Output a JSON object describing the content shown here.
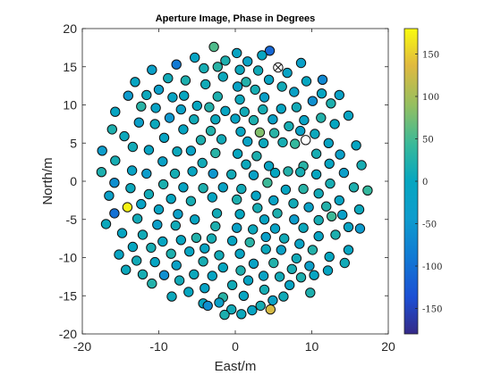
{
  "chart_data": {
    "type": "scatter",
    "title": "Aperture Image, Phase in Degrees",
    "xlabel": "East/m",
    "ylabel": "North/m",
    "xlim": [
      -20,
      20
    ],
    "ylim": [
      -20,
      20
    ],
    "xticks": [
      "-20",
      "-10",
      "0",
      "10",
      "20"
    ],
    "yticks": [
      "20",
      "15",
      "10",
      "5",
      "0",
      "-5",
      "-10",
      "-15",
      "-20"
    ],
    "grid": false,
    "colorbar": {
      "colormap": "parula",
      "range": [
        -180,
        180
      ],
      "ticks": [
        "150",
        "100",
        "50",
        "0",
        "-50",
        "-100",
        "-150"
      ]
    },
    "special_markers": [
      {
        "x": 5.6,
        "y": 14.9,
        "kind": "crossed-circle"
      },
      {
        "x": 9.2,
        "y": 5.4,
        "kind": "empty-circle"
      }
    ],
    "points": [
      {
        "x": 4.5,
        "y": 17.1,
        "phase": -110
      },
      {
        "x": -2.8,
        "y": 17.6,
        "phase": 55
      },
      {
        "x": 0.2,
        "y": 16.8,
        "phase": -10
      },
      {
        "x": 3.5,
        "y": 16.5,
        "phase": -5
      },
      {
        "x": -5.3,
        "y": 16.2,
        "phase": -10
      },
      {
        "x": 8.6,
        "y": 15.5,
        "phase": -25
      },
      {
        "x": -1.3,
        "y": 15.8,
        "phase": 20
      },
      {
        "x": 1.6,
        "y": 15.7,
        "phase": -15
      },
      {
        "x": -7.7,
        "y": 15.3,
        "phase": -90
      },
      {
        "x": -10.9,
        "y": 14.6,
        "phase": -25
      },
      {
        "x": -4.1,
        "y": 14.8,
        "phase": 15
      },
      {
        "x": -2.3,
        "y": 15.0,
        "phase": 30
      },
      {
        "x": 0.6,
        "y": 14.6,
        "phase": 5
      },
      {
        "x": 3.0,
        "y": 14.5,
        "phase": 10
      },
      {
        "x": 6.8,
        "y": 14.2,
        "phase": -15
      },
      {
        "x": 11.4,
        "y": 13.3,
        "phase": -70
      },
      {
        "x": -8.8,
        "y": 13.5,
        "phase": 10
      },
      {
        "x": -6.5,
        "y": 13.2,
        "phase": 20
      },
      {
        "x": -1.6,
        "y": 13.7,
        "phase": 5
      },
      {
        "x": 1.4,
        "y": 13.0,
        "phase": 25
      },
      {
        "x": 4.4,
        "y": 13.3,
        "phase": -10
      },
      {
        "x": 9.3,
        "y": 13.1,
        "phase": 0
      },
      {
        "x": -13.1,
        "y": 13.0,
        "phase": -5
      },
      {
        "x": -3.9,
        "y": 12.7,
        "phase": 10
      },
      {
        "x": 0.3,
        "y": 12.4,
        "phase": -15
      },
      {
        "x": 2.6,
        "y": 12.0,
        "phase": 15
      },
      {
        "x": 6.1,
        "y": 12.4,
        "phase": 10
      },
      {
        "x": -10.0,
        "y": 12.0,
        "phase": -30
      },
      {
        "x": 7.7,
        "y": 11.7,
        "phase": -20
      },
      {
        "x": -11.6,
        "y": 11.3,
        "phase": 5
      },
      {
        "x": 11.3,
        "y": 11.5,
        "phase": -5
      },
      {
        "x": -8.2,
        "y": 11.0,
        "phase": -10
      },
      {
        "x": -6.7,
        "y": 11.2,
        "phase": 0
      },
      {
        "x": -2.3,
        "y": 11.1,
        "phase": 20
      },
      {
        "x": 0.6,
        "y": 10.7,
        "phase": 5
      },
      {
        "x": 3.8,
        "y": 11.0,
        "phase": -25
      },
      {
        "x": 13.6,
        "y": 11.3,
        "phase": -20
      },
      {
        "x": -14.0,
        "y": 11.2,
        "phase": -45
      },
      {
        "x": 10.1,
        "y": 10.5,
        "phase": -60
      },
      {
        "x": 12.5,
        "y": 10.2,
        "phase": 20
      },
      {
        "x": -12.3,
        "y": 9.8,
        "phase": 30
      },
      {
        "x": -10.4,
        "y": 9.6,
        "phase": -15
      },
      {
        "x": -7.1,
        "y": 9.4,
        "phase": -20
      },
      {
        "x": -5.0,
        "y": 9.9,
        "phase": 0
      },
      {
        "x": -3.4,
        "y": 9.7,
        "phase": 25
      },
      {
        "x": -1.3,
        "y": 9.2,
        "phase": -5
      },
      {
        "x": 1.2,
        "y": 9.1,
        "phase": 10
      },
      {
        "x": 3.6,
        "y": 9.4,
        "phase": 15
      },
      {
        "x": 6.0,
        "y": 9.5,
        "phase": -5
      },
      {
        "x": 8.0,
        "y": 9.7,
        "phase": 10
      },
      {
        "x": -15.7,
        "y": 9.1,
        "phase": -5
      },
      {
        "x": 14.8,
        "y": 8.6,
        "phase": -10
      },
      {
        "x": -8.6,
        "y": 8.3,
        "phase": -50
      },
      {
        "x": -5.4,
        "y": 8.1,
        "phase": 10
      },
      {
        "x": -2.6,
        "y": 8.1,
        "phase": 5
      },
      {
        "x": 0.0,
        "y": 8.2,
        "phase": -10
      },
      {
        "x": 2.4,
        "y": 8.0,
        "phase": 20
      },
      {
        "x": 4.9,
        "y": 8.1,
        "phase": -20
      },
      {
        "x": 9.0,
        "y": 8.0,
        "phase": -15
      },
      {
        "x": 11.2,
        "y": 8.3,
        "phase": 25
      },
      {
        "x": -12.6,
        "y": 7.7,
        "phase": -30
      },
      {
        "x": -10.5,
        "y": 7.5,
        "phase": 5
      },
      {
        "x": 7.0,
        "y": 7.2,
        "phase": 15
      },
      {
        "x": 13.0,
        "y": 7.5,
        "phase": 0
      },
      {
        "x": -16.1,
        "y": 6.8,
        "phase": 20
      },
      {
        "x": -6.8,
        "y": 6.8,
        "phase": -5
      },
      {
        "x": -3.2,
        "y": 6.6,
        "phase": 25
      },
      {
        "x": 0.7,
        "y": 6.5,
        "phase": -5
      },
      {
        "x": 3.2,
        "y": 6.4,
        "phase": 80
      },
      {
        "x": 5.1,
        "y": 6.3,
        "phase": 30
      },
      {
        "x": 8.5,
        "y": 6.6,
        "phase": -20
      },
      {
        "x": 10.4,
        "y": 6.2,
        "phase": 5
      },
      {
        "x": -14.5,
        "y": 5.9,
        "phase": 5
      },
      {
        "x": -9.3,
        "y": 5.7,
        "phase": -10
      },
      {
        "x": -4.5,
        "y": 5.4,
        "phase": 20
      },
      {
        "x": -1.8,
        "y": 5.5,
        "phase": 10
      },
      {
        "x": 1.6,
        "y": 5.2,
        "phase": -15
      },
      {
        "x": 3.7,
        "y": 5.0,
        "phase": 5
      },
      {
        "x": 6.2,
        "y": 5.1,
        "phase": 15
      },
      {
        "x": 7.8,
        "y": 4.9,
        "phase": 40
      },
      {
        "x": 12.2,
        "y": 5.0,
        "phase": -10
      },
      {
        "x": 15.8,
        "y": 4.7,
        "phase": -5
      },
      {
        "x": -17.4,
        "y": 4.0,
        "phase": -40
      },
      {
        "x": -13.4,
        "y": 4.5,
        "phase": 10
      },
      {
        "x": -11.3,
        "y": 4.1,
        "phase": -10
      },
      {
        "x": -7.6,
        "y": 3.9,
        "phase": 5
      },
      {
        "x": -5.8,
        "y": 4.0,
        "phase": -15
      },
      {
        "x": -2.6,
        "y": 3.7,
        "phase": 30
      },
      {
        "x": 0.3,
        "y": 3.6,
        "phase": 0
      },
      {
        "x": 2.8,
        "y": 3.3,
        "phase": 20
      },
      {
        "x": 10.6,
        "y": 3.6,
        "phase": 15
      },
      {
        "x": 13.7,
        "y": 3.5,
        "phase": -25
      },
      {
        "x": -15.7,
        "y": 2.7,
        "phase": 15
      },
      {
        "x": -9.5,
        "y": 2.6,
        "phase": -20
      },
      {
        "x": -4.3,
        "y": 2.4,
        "phase": 10
      },
      {
        "x": 1.4,
        "y": 2.2,
        "phase": 5
      },
      {
        "x": 4.4,
        "y": 2.0,
        "phase": -10
      },
      {
        "x": 8.9,
        "y": 2.0,
        "phase": 30
      },
      {
        "x": 12.3,
        "y": 2.3,
        "phase": -5
      },
      {
        "x": 16.5,
        "y": 2.1,
        "phase": 15
      },
      {
        "x": -17.5,
        "y": 1.2,
        "phase": 20
      },
      {
        "x": -13.5,
        "y": 1.4,
        "phase": -15
      },
      {
        "x": -11.6,
        "y": 1.0,
        "phase": -40
      },
      {
        "x": -7.9,
        "y": 1.0,
        "phase": 15
      },
      {
        "x": -5.6,
        "y": 1.3,
        "phase": -5
      },
      {
        "x": -2.9,
        "y": 1.0,
        "phase": -50
      },
      {
        "x": -0.5,
        "y": 0.9,
        "phase": 10
      },
      {
        "x": 2.4,
        "y": 0.8,
        "phase": -20
      },
      {
        "x": 5.2,
        "y": 1.1,
        "phase": 0
      },
      {
        "x": 6.9,
        "y": 1.3,
        "phase": 25
      },
      {
        "x": 8.5,
        "y": 1.2,
        "phase": 15
      },
      {
        "x": 10.6,
        "y": 0.9,
        "phase": 0
      },
      {
        "x": 14.2,
        "y": 1.1,
        "phase": -30
      },
      {
        "x": -15.8,
        "y": -0.2,
        "phase": -60
      },
      {
        "x": -9.4,
        "y": -0.4,
        "phase": 20
      },
      {
        "x": 4.2,
        "y": -0.2,
        "phase": 45
      },
      {
        "x": 12.4,
        "y": -0.3,
        "phase": 15
      },
      {
        "x": -13.7,
        "y": -0.9,
        "phase": 5
      },
      {
        "x": -6.8,
        "y": -0.8,
        "phase": -10
      },
      {
        "x": -4.2,
        "y": -0.9,
        "phase": 20
      },
      {
        "x": -1.6,
        "y": -0.8,
        "phase": -15
      },
      {
        "x": 0.8,
        "y": -1.0,
        "phase": 10
      },
      {
        "x": 6.6,
        "y": -1.1,
        "phase": -5
      },
      {
        "x": 8.9,
        "y": -1.0,
        "phase": 30
      },
      {
        "x": 15.5,
        "y": -0.8,
        "phase": 20
      },
      {
        "x": -16.5,
        "y": -1.9,
        "phase": -25
      },
      {
        "x": -11.3,
        "y": -1.7,
        "phase": 10
      },
      {
        "x": 2.7,
        "y": -1.9,
        "phase": -10
      },
      {
        "x": 10.9,
        "y": -1.6,
        "phase": 10
      },
      {
        "x": -8.4,
        "y": -2.3,
        "phase": 0
      },
      {
        "x": -5.8,
        "y": -2.6,
        "phase": 15
      },
      {
        "x": -3.0,
        "y": -2.1,
        "phase": -5
      },
      {
        "x": 0.2,
        "y": -2.4,
        "phase": 20
      },
      {
        "x": 5.0,
        "y": -2.5,
        "phase": -15
      },
      {
        "x": 7.6,
        "y": -2.9,
        "phase": 10
      },
      {
        "x": 13.6,
        "y": -2.5,
        "phase": -10
      },
      {
        "x": 17.3,
        "y": -1.2,
        "phase": 40
      },
      {
        "x": -14.1,
        "y": -3.4,
        "phase": 175
      },
      {
        "x": -12.3,
        "y": -3.0,
        "phase": -15
      },
      {
        "x": -10.0,
        "y": -3.7,
        "phase": -10
      },
      {
        "x": 2.9,
        "y": -3.5,
        "phase": 15
      },
      {
        "x": 9.6,
        "y": -3.4,
        "phase": -20
      },
      {
        "x": 11.9,
        "y": -3.3,
        "phase": 25
      },
      {
        "x": 16.2,
        "y": -3.7,
        "phase": 5
      },
      {
        "x": -15.8,
        "y": -4.2,
        "phase": -100
      },
      {
        "x": -7.5,
        "y": -4.3,
        "phase": -25
      },
      {
        "x": -2.4,
        "y": -4.2,
        "phase": 10
      },
      {
        "x": 0.6,
        "y": -4.3,
        "phase": 0
      },
      {
        "x": 5.5,
        "y": -4.2,
        "phase": 20
      },
      {
        "x": 14.0,
        "y": -4.4,
        "phase": -25
      },
      {
        "x": -12.8,
        "y": -4.9,
        "phase": 10
      },
      {
        "x": -5.3,
        "y": -5.0,
        "phase": -5
      },
      {
        "x": 3.8,
        "y": -5.0,
        "phase": -10
      },
      {
        "x": 7.7,
        "y": -5.0,
        "phase": -40
      },
      {
        "x": 10.9,
        "y": -5.1,
        "phase": 15
      },
      {
        "x": 12.6,
        "y": -4.6,
        "phase": 45
      },
      {
        "x": -16.9,
        "y": -5.6,
        "phase": 5
      },
      {
        "x": -10.2,
        "y": -5.7,
        "phase": -30
      },
      {
        "x": -7.8,
        "y": -5.8,
        "phase": 10
      },
      {
        "x": -2.6,
        "y": -5.9,
        "phase": 20
      },
      {
        "x": 0.2,
        "y": -6.1,
        "phase": -20
      },
      {
        "x": 2.3,
        "y": -6.3,
        "phase": 5
      },
      {
        "x": 5.2,
        "y": -6.2,
        "phase": -15
      },
      {
        "x": 8.9,
        "y": -6.1,
        "phase": 5
      },
      {
        "x": 14.8,
        "y": -6.0,
        "phase": -10
      },
      {
        "x": 16.3,
        "y": -6.2,
        "phase": -45
      },
      {
        "x": -14.8,
        "y": -6.8,
        "phase": -5
      },
      {
        "x": -12.1,
        "y": -7.0,
        "phase": 10
      },
      {
        "x": -5.1,
        "y": -7.4,
        "phase": 25
      },
      {
        "x": -3.1,
        "y": -7.5,
        "phase": 15
      },
      {
        "x": 4.0,
        "y": -7.3,
        "phase": -25
      },
      {
        "x": 6.4,
        "y": -7.5,
        "phase": 10
      },
      {
        "x": 10.9,
        "y": -7.2,
        "phase": -10
      },
      {
        "x": 13.1,
        "y": -7.0,
        "phase": 20
      },
      {
        "x": -9.5,
        "y": -7.9,
        "phase": -5
      },
      {
        "x": -7.1,
        "y": -7.7,
        "phase": 0
      },
      {
        "x": -0.4,
        "y": -7.8,
        "phase": -5
      },
      {
        "x": 1.9,
        "y": -8.0,
        "phase": 30
      },
      {
        "x": 8.4,
        "y": -8.2,
        "phase": -15
      },
      {
        "x": -13.4,
        "y": -8.6,
        "phase": 0
      },
      {
        "x": -11.0,
        "y": -8.7,
        "phase": 15
      },
      {
        "x": -4.0,
        "y": -8.8,
        "phase": -10
      },
      {
        "x": 4.0,
        "y": -8.9,
        "phase": 5
      },
      {
        "x": 6.0,
        "y": -9.0,
        "phase": -20
      },
      {
        "x": 10.1,
        "y": -9.0,
        "phase": 25
      },
      {
        "x": 14.8,
        "y": -9.0,
        "phase": -5
      },
      {
        "x": -15.2,
        "y": -9.6,
        "phase": -10
      },
      {
        "x": -8.4,
        "y": -9.5,
        "phase": 20
      },
      {
        "x": -6.0,
        "y": -9.2,
        "phase": -5
      },
      {
        "x": -2.1,
        "y": -9.7,
        "phase": 10
      },
      {
        "x": 0.6,
        "y": -9.5,
        "phase": -10
      },
      {
        "x": 8.0,
        "y": -10.1,
        "phase": 10
      },
      {
        "x": 12.3,
        "y": -9.9,
        "phase": 0
      },
      {
        "x": -12.9,
        "y": -10.4,
        "phase": 10
      },
      {
        "x": -10.5,
        "y": -10.6,
        "phase": -5
      },
      {
        "x": -4.2,
        "y": -10.5,
        "phase": 15
      },
      {
        "x": 2.4,
        "y": -10.8,
        "phase": -15
      },
      {
        "x": 5.0,
        "y": -10.7,
        "phase": 25
      },
      {
        "x": 9.7,
        "y": -11.1,
        "phase": -30
      },
      {
        "x": 14.3,
        "y": -10.7,
        "phase": 10
      },
      {
        "x": -14.3,
        "y": -11.6,
        "phase": 5
      },
      {
        "x": -7.7,
        "y": -11.0,
        "phase": -20
      },
      {
        "x": -1.6,
        "y": -11.3,
        "phase": 0
      },
      {
        "x": 0.7,
        "y": -11.7,
        "phase": 20
      },
      {
        "x": 7.4,
        "y": -11.5,
        "phase": 15
      },
      {
        "x": 12.1,
        "y": -11.7,
        "phase": -5
      },
      {
        "x": -9.3,
        "y": -12.3,
        "phase": -60
      },
      {
        "x": -12.1,
        "y": -12.2,
        "phase": 15
      },
      {
        "x": -5.4,
        "y": -12.2,
        "phase": 5
      },
      {
        "x": -3.0,
        "y": -12.4,
        "phase": -10
      },
      {
        "x": 3.7,
        "y": -12.4,
        "phase": -15
      },
      {
        "x": 5.8,
        "y": -12.5,
        "phase": 10
      },
      {
        "x": 8.6,
        "y": -12.6,
        "phase": 20
      },
      {
        "x": 10.3,
        "y": -12.3,
        "phase": -5
      },
      {
        "x": -7.3,
        "y": -13.0,
        "phase": 10
      },
      {
        "x": 1.7,
        "y": -13.0,
        "phase": -10
      },
      {
        "x": -10.9,
        "y": -13.4,
        "phase": 25
      },
      {
        "x": -0.4,
        "y": -13.6,
        "phase": 10
      },
      {
        "x": 7.1,
        "y": -13.6,
        "phase": -10
      },
      {
        "x": -4.0,
        "y": -14.0,
        "phase": -15
      },
      {
        "x": -6.1,
        "y": -14.5,
        "phase": 0
      },
      {
        "x": 3.8,
        "y": -14.2,
        "phase": 15
      },
      {
        "x": 9.8,
        "y": -14.6,
        "phase": 20
      },
      {
        "x": -8.3,
        "y": -15.1,
        "phase": 5
      },
      {
        "x": -1.6,
        "y": -15.2,
        "phase": 30
      },
      {
        "x": 1.1,
        "y": -15.0,
        "phase": -5
      },
      {
        "x": 6.3,
        "y": -15.1,
        "phase": 10
      },
      {
        "x": 4.9,
        "y": -15.6,
        "phase": -20
      },
      {
        "x": -4.2,
        "y": -16.0,
        "phase": 0
      },
      {
        "x": -2.1,
        "y": -15.9,
        "phase": -25
      },
      {
        "x": 3.3,
        "y": -16.3,
        "phase": 15
      },
      {
        "x": -3.6,
        "y": -16.3,
        "phase": -60
      },
      {
        "x": -0.5,
        "y": -16.8,
        "phase": 10
      },
      {
        "x": 2.2,
        "y": -16.9,
        "phase": -10
      },
      {
        "x": 4.6,
        "y": -16.8,
        "phase": 130
      },
      {
        "x": 0.8,
        "y": -17.4,
        "phase": 5
      },
      {
        "x": -1.4,
        "y": -17.5,
        "phase": 20
      }
    ]
  }
}
